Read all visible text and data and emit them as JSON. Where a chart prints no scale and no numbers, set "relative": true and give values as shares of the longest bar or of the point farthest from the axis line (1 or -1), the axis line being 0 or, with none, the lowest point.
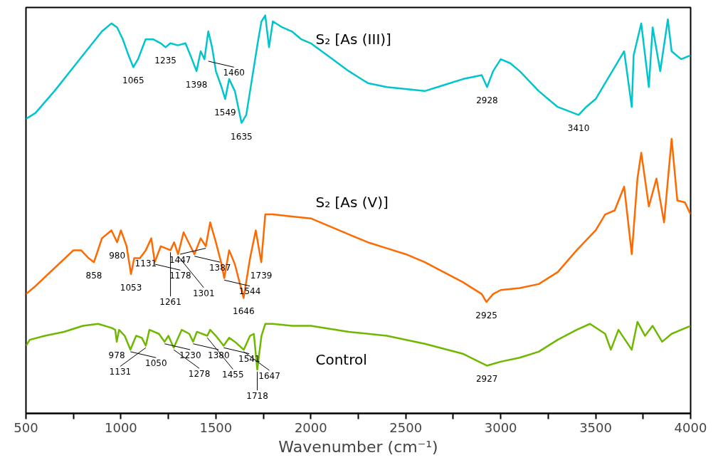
{
  "chart_data": {
    "type": "line",
    "relative": true,
    "xlabel": "Wavenumber (cm⁻¹)",
    "xlim": [
      500,
      4000
    ],
    "xticks": [
      500,
      {
        "value": 750,
        "label": null
      },
      1000,
      {
        "value": 1250,
        "label": null
      },
      1500,
      {
        "value": 1750,
        "label": null
      },
      2000,
      {
        "value": 2250,
        "label": null
      },
      2500,
      {
        "value": 2750,
        "label": null
      },
      3000,
      {
        "value": 3250,
        "label": null
      },
      3500,
      {
        "value": 3750,
        "label": null
      },
      4000
    ],
    "grid": false,
    "series": [
      {
        "name": "S₂ [As (III)]",
        "color": "#00c5cd",
        "x": [
          500,
          550,
          650,
          750,
          850,
          900,
          950,
          980,
          1010,
          1040,
          1065,
          1090,
          1130,
          1170,
          1210,
          1235,
          1260,
          1300,
          1340,
          1370,
          1398,
          1420,
          1440,
          1460,
          1480,
          1500,
          1530,
          1549,
          1570,
          1600,
          1635,
          1660,
          1690,
          1720,
          1740,
          1760,
          1780,
          1800,
          1850,
          1900,
          1950,
          2000,
          2100,
          2200,
          2300,
          2400,
          2500,
          2600,
          2700,
          2800,
          2900,
          2928,
          2960,
          3000,
          3050,
          3100,
          3200,
          3300,
          3410,
          3450,
          3500,
          3550,
          3600,
          3650,
          3690,
          3700,
          3740,
          3780,
          3800,
          3840,
          3880,
          3900,
          3950,
          4000
        ],
        "values": [
          0.74,
          0.755,
          0.81,
          0.87,
          0.93,
          0.96,
          0.98,
          0.97,
          0.94,
          0.9,
          0.87,
          0.89,
          0.94,
          0.94,
          0.93,
          0.92,
          0.93,
          0.925,
          0.93,
          0.895,
          0.86,
          0.91,
          0.89,
          0.96,
          0.92,
          0.86,
          0.82,
          0.79,
          0.84,
          0.81,
          0.73,
          0.75,
          0.84,
          0.93,
          0.985,
          1.0,
          0.92,
          0.985,
          0.97,
          0.96,
          0.94,
          0.93,
          0.895,
          0.86,
          0.83,
          0.82,
          0.815,
          0.81,
          0.825,
          0.84,
          0.85,
          0.82,
          0.86,
          0.89,
          0.88,
          0.86,
          0.81,
          0.77,
          0.75,
          0.77,
          0.79,
          0.83,
          0.87,
          0.91,
          0.77,
          0.9,
          0.98,
          0.82,
          0.97,
          0.86,
          0.99,
          0.91,
          0.89,
          0.9
        ]
      },
      {
        "name": "S₂ [As (V)]",
        "color": "#ff6a00",
        "x": [
          500,
          550,
          650,
          750,
          790,
          830,
          858,
          900,
          950,
          980,
          1000,
          1030,
          1053,
          1070,
          1100,
          1131,
          1160,
          1178,
          1210,
          1261,
          1280,
          1301,
          1330,
          1387,
          1420,
          1447,
          1470,
          1500,
          1530,
          1544,
          1570,
          1600,
          1646,
          1680,
          1710,
          1739,
          1760,
          1800,
          1900,
          2000,
          2100,
          2200,
          2300,
          2400,
          2500,
          2600,
          2700,
          2800,
          2900,
          2925,
          2960,
          3000,
          3100,
          3200,
          3300,
          3400,
          3500,
          3550,
          3600,
          3650,
          3690,
          3720,
          3740,
          3780,
          3820,
          3860,
          3900,
          3930,
          3970,
          4000
        ],
        "values": [
          0.3,
          0.32,
          0.365,
          0.41,
          0.41,
          0.39,
          0.38,
          0.44,
          0.46,
          0.43,
          0.46,
          0.42,
          0.35,
          0.39,
          0.39,
          0.41,
          0.44,
          0.38,
          0.42,
          0.41,
          0.43,
          0.4,
          0.455,
          0.4,
          0.44,
          0.42,
          0.48,
          0.43,
          0.375,
          0.34,
          0.41,
          0.375,
          0.29,
          0.39,
          0.46,
          0.38,
          0.5,
          0.5,
          0.495,
          0.49,
          0.47,
          0.45,
          0.43,
          0.415,
          0.4,
          0.38,
          0.355,
          0.33,
          0.3,
          0.28,
          0.3,
          0.31,
          0.315,
          0.325,
          0.355,
          0.41,
          0.46,
          0.5,
          0.51,
          0.57,
          0.4,
          0.59,
          0.655,
          0.52,
          0.59,
          0.48,
          0.69,
          0.535,
          0.53,
          0.5
        ]
      },
      {
        "name": "Control",
        "color": "#6fb800",
        "x": [
          500,
          520,
          600,
          700,
          800,
          880,
          950,
          970,
          978,
          990,
          1020,
          1050,
          1080,
          1110,
          1131,
          1150,
          1200,
          1230,
          1250,
          1278,
          1320,
          1360,
          1380,
          1400,
          1455,
          1470,
          1500,
          1541,
          1570,
          1600,
          1647,
          1680,
          1700,
          1718,
          1740,
          1760,
          1800,
          1900,
          2000,
          2200,
          2400,
          2600,
          2800,
          2927,
          3000,
          3100,
          3200,
          3300,
          3400,
          3470,
          3550,
          3580,
          3620,
          3690,
          3720,
          3760,
          3800,
          3850,
          3900,
          3950,
          4000
        ],
        "values": [
          0.17,
          0.185,
          0.195,
          0.205,
          0.22,
          0.225,
          0.215,
          0.21,
          0.18,
          0.21,
          0.195,
          0.16,
          0.195,
          0.19,
          0.17,
          0.21,
          0.2,
          0.18,
          0.195,
          0.165,
          0.21,
          0.2,
          0.18,
          0.205,
          0.195,
          0.21,
          0.195,
          0.17,
          0.19,
          0.18,
          0.16,
          0.195,
          0.2,
          0.11,
          0.195,
          0.225,
          0.225,
          0.22,
          0.22,
          0.205,
          0.195,
          0.175,
          0.15,
          0.12,
          0.13,
          0.14,
          0.155,
          0.185,
          0.21,
          0.225,
          0.2,
          0.16,
          0.21,
          0.16,
          0.23,
          0.195,
          0.22,
          0.18,
          0.2,
          0.21,
          0.22
        ]
      }
    ],
    "annotations": [
      {
        "text": "1065",
        "x": 1065,
        "y": 0.87
      },
      {
        "text": "1235",
        "x": 1235,
        "y": 0.92
      },
      {
        "text": "1398",
        "x": 1398,
        "y": 0.86
      },
      {
        "text": "1460",
        "x": 1460,
        "y": 0.89
      },
      {
        "text": "1549",
        "x": 1549,
        "y": 0.79
      },
      {
        "text": "1635",
        "x": 1635,
        "y": 0.73
      },
      {
        "text": "2928",
        "x": 2928,
        "y": 0.82
      },
      {
        "text": "3410",
        "x": 3410,
        "y": 0.75
      },
      {
        "text": "858",
        "x": 858,
        "y": 0.38
      },
      {
        "text": "980",
        "x": 980,
        "y": 0.43
      },
      {
        "text": "1053",
        "x": 1053,
        "y": 0.35
      },
      {
        "text": "1131",
        "x": 1131,
        "y": 0.41
      },
      {
        "text": "1178",
        "x": 1178,
        "y": 0.38
      },
      {
        "text": "1261",
        "x": 1261,
        "y": 0.41
      },
      {
        "text": "1301",
        "x": 1301,
        "y": 0.4
      },
      {
        "text": "1387",
        "x": 1387,
        "y": 0.4
      },
      {
        "text": "1447",
        "x": 1447,
        "y": 0.42
      },
      {
        "text": "1544",
        "x": 1544,
        "y": 0.34
      },
      {
        "text": "1646",
        "x": 1646,
        "y": 0.29
      },
      {
        "text": "1739",
        "x": 1739,
        "y": 0.38
      },
      {
        "text": "2925",
        "x": 2925,
        "y": 0.28
      },
      {
        "text": "978",
        "x": 978,
        "y": 0.18
      },
      {
        "text": "1050",
        "x": 1050,
        "y": 0.16
      },
      {
        "text": "1131",
        "x": 1131,
        "y": 0.17
      },
      {
        "text": "1230",
        "x": 1230,
        "y": 0.18
      },
      {
        "text": "1278",
        "x": 1278,
        "y": 0.165
      },
      {
        "text": "1380",
        "x": 1380,
        "y": 0.18
      },
      {
        "text": "1455",
        "x": 1455,
        "y": 0.195
      },
      {
        "text": "1541",
        "x": 1541,
        "y": 0.17
      },
      {
        "text": "1647",
        "x": 1647,
        "y": 0.16
      },
      {
        "text": "1718",
        "x": 1718,
        "y": 0.11
      },
      {
        "text": "2927",
        "x": 2927,
        "y": 0.12
      }
    ]
  }
}
